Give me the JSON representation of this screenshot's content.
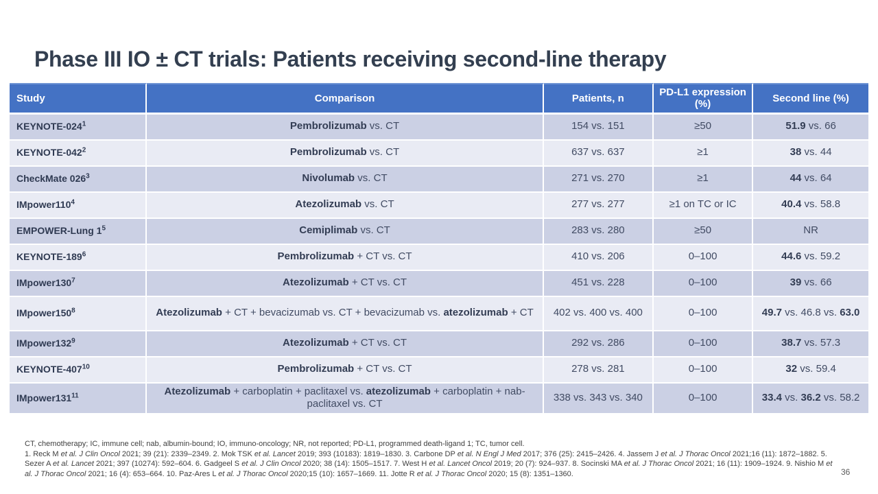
{
  "slide": {
    "title": "Phase III IO ± CT trials: Patients receiving second-line therapy",
    "page_number": "36"
  },
  "colors": {
    "header_bg": "#4472c4",
    "row_odd_bg": "#cbd0e4",
    "row_even_bg": "#e9ebf4",
    "title_text": "#333f50"
  },
  "table": {
    "headers": [
      "Study",
      "Comparison",
      "Patients, n",
      "PD-L1 expression (%)",
      "Second line (%)"
    ],
    "rows": [
      {
        "study": "KEYNOTE-024",
        "sup": "1",
        "comparison": [
          {
            "t": "Pembrolizumab",
            "b": true
          },
          {
            "t": " vs. CT"
          }
        ],
        "patients": "154 vs. 151",
        "pdl1": "≥50",
        "second_line": [
          {
            "t": "51.9",
            "b": true
          },
          {
            "t": " vs. 66"
          }
        ]
      },
      {
        "study": "KEYNOTE-042",
        "sup": "2",
        "comparison": [
          {
            "t": "Pembrolizumab",
            "b": true
          },
          {
            "t": " vs. CT"
          }
        ],
        "patients": "637 vs. 637",
        "pdl1": "≥1",
        "second_line": [
          {
            "t": "38",
            "b": true
          },
          {
            "t": " vs. 44"
          }
        ]
      },
      {
        "study": "CheckMate 026",
        "sup": "3",
        "comparison": [
          {
            "t": "Nivolumab",
            "b": true
          },
          {
            "t": " vs. CT"
          }
        ],
        "patients": "271 vs. 270",
        "pdl1": "≥1",
        "second_line": [
          {
            "t": "44",
            "b": true
          },
          {
            "t": " vs. 64"
          }
        ]
      },
      {
        "study": "IMpower110",
        "sup": "4",
        "comparison": [
          {
            "t": "Atezolizumab",
            "b": true
          },
          {
            "t": " vs. CT"
          }
        ],
        "patients": "277 vs. 277",
        "pdl1": "≥1 on TC or IC",
        "second_line": [
          {
            "t": "40.4",
            "b": true
          },
          {
            "t": " vs. 58.8"
          }
        ]
      },
      {
        "study": "EMPOWER-Lung 1",
        "sup": "5",
        "comparison": [
          {
            "t": "Cemiplimab",
            "b": true
          },
          {
            "t": " vs. CT"
          }
        ],
        "patients": "283 vs. 280",
        "pdl1": "≥50",
        "second_line": [
          {
            "t": "NR"
          }
        ]
      },
      {
        "study": "KEYNOTE-189",
        "sup": "6",
        "comparison": [
          {
            "t": "Pembrolizumab",
            "b": true
          },
          {
            "t": " + CT vs. CT"
          }
        ],
        "patients": "410 vs. 206",
        "pdl1": "0–100",
        "second_line": [
          {
            "t": "44.6",
            "b": true
          },
          {
            "t": " vs. 59.2"
          }
        ]
      },
      {
        "study": "IMpower130",
        "sup": "7",
        "comparison": [
          {
            "t": "Atezolizumab",
            "b": true
          },
          {
            "t": " + CT vs. CT"
          }
        ],
        "patients": "451 vs. 228",
        "pdl1": "0–100",
        "second_line": [
          {
            "t": "39",
            "b": true
          },
          {
            "t": " vs. 66"
          }
        ]
      },
      {
        "study": "IMpower150",
        "sup": "8",
        "comparison": [
          {
            "t": "Atezolizumab",
            "b": true
          },
          {
            "t": " + CT + bevacizumab vs. CT + bevacizumab vs. "
          },
          {
            "t": "atezolizumab",
            "b": true
          },
          {
            "t": " + CT"
          }
        ],
        "patients": "402 vs. 400 vs. 400",
        "pdl1": "0–100",
        "second_line": [
          {
            "t": "49.7",
            "b": true
          },
          {
            "t": " vs. 46.8 vs. "
          },
          {
            "t": "63.0",
            "b": true
          }
        ]
      },
      {
        "study": "IMpower132",
        "sup": "9",
        "comparison": [
          {
            "t": "Atezolizumab",
            "b": true
          },
          {
            "t": " + CT vs. CT"
          }
        ],
        "patients": "292 vs. 286",
        "pdl1": "0–100",
        "second_line": [
          {
            "t": "38.7",
            "b": true
          },
          {
            "t": " vs. 57.3"
          }
        ]
      },
      {
        "study": "KEYNOTE-407",
        "sup": "10",
        "comparison": [
          {
            "t": "Pembrolizumab",
            "b": true
          },
          {
            "t": " + CT vs. CT"
          }
        ],
        "patients": "278 vs. 281",
        "pdl1": "0–100",
        "second_line": [
          {
            "t": "32",
            "b": true
          },
          {
            "t": " vs. 59.4"
          }
        ]
      },
      {
        "study": "IMpower131",
        "sup": "11",
        "comparison": [
          {
            "t": "Atezolizumab",
            "b": true
          },
          {
            "t": " + carboplatin + paclitaxel vs. "
          },
          {
            "t": "atezolizumab",
            "b": true
          },
          {
            "t": " + carboplatin + nab-paclitaxel vs. CT"
          }
        ],
        "patients": "338 vs. 343 vs. 340",
        "pdl1": "0–100",
        "second_line": [
          {
            "t": "33.4",
            "b": true
          },
          {
            "t": " vs. "
          },
          {
            "t": "36.2",
            "b": true
          },
          {
            "t": " vs. 58.2"
          }
        ]
      }
    ]
  },
  "footnotes": {
    "abbreviations": "CT, chemotherapy; IC, immune cell; nab, albumin-bound; IO, immuno-oncology; NR, not reported; PD-L1, programmed death-ligand 1; TC, tumor cell.",
    "references": [
      {
        "t": "1. Reck M "
      },
      {
        "t": "et al. J Clin Oncol",
        "i": true
      },
      {
        "t": " 2021; 39 (21): 2339–2349. 2. Mok TSK "
      },
      {
        "t": "et al. Lancet",
        "i": true
      },
      {
        "t": " 2019; 393 (10183): 1819–1830. 3. Carbone DP "
      },
      {
        "t": "et al. N Engl J Med",
        "i": true
      },
      {
        "t": " 2017; 376 (25): 2415–2426. 4. Jassem J "
      },
      {
        "t": "et al. J Thorac Oncol",
        "i": true
      },
      {
        "t": " 2021;16 (11): 1872–1882. 5. Sezer A "
      },
      {
        "t": "et al. Lancet",
        "i": true
      },
      {
        "t": " 2021; 397 (10274): 592–604. 6. Gadgeel S "
      },
      {
        "t": "et al. J Clin Oncol",
        "i": true
      },
      {
        "t": " 2020; 38 (14): 1505–1517. 7. West H "
      },
      {
        "t": "et al. Lancet Oncol",
        "i": true
      },
      {
        "t": " 2019; 20 (7): 924–937. 8. Socinski MA "
      },
      {
        "t": "et al. J Thorac Oncol",
        "i": true
      },
      {
        "t": " 2021; 16 (11): 1909–1924. 9. Nishio M "
      },
      {
        "t": "et al. J Thorac Oncol",
        "i": true
      },
      {
        "t": " 2021; 16 (4): 653–664. 10. Paz-Ares L "
      },
      {
        "t": "et al. J Thorac Oncol",
        "i": true
      },
      {
        "t": " 2020;15 (10): 1657–1669. 11. Jotte R "
      },
      {
        "t": "et al. J Thorac Oncol",
        "i": true
      },
      {
        "t": " 2020; 15 (8): 1351–1360."
      }
    ]
  }
}
